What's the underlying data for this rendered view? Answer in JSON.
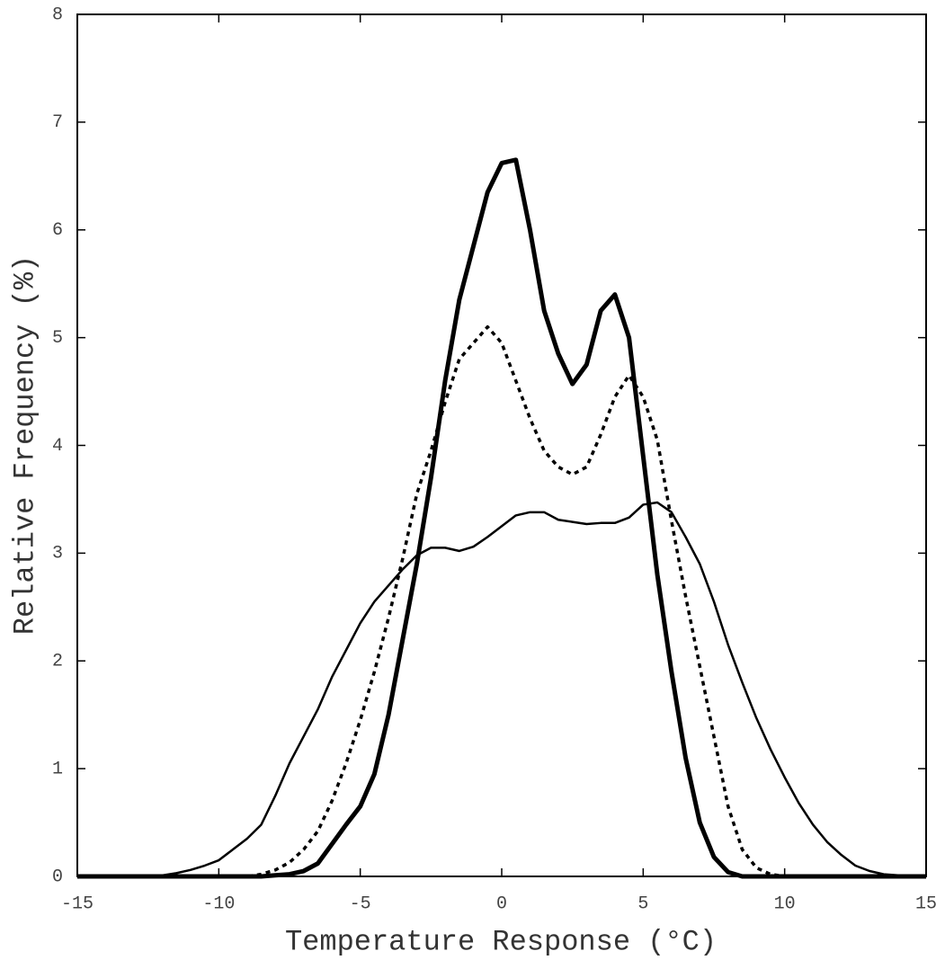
{
  "chart_data": {
    "type": "line",
    "xlabel": "Temperature Response (°C)",
    "ylabel": "Relative Frequency (%)",
    "x": [
      -15,
      -14.5,
      -14,
      -13.5,
      -13,
      -12.5,
      -12,
      -11.5,
      -11,
      -10.5,
      -10,
      -9.5,
      -9,
      -8.5,
      -8,
      -7.5,
      -7,
      -6.5,
      -6,
      -5.5,
      -5,
      -4.5,
      -4,
      -3.5,
      -3,
      -2.5,
      -2,
      -1.5,
      -1,
      -0.5,
      0,
      0.5,
      1,
      1.5,
      2,
      2.5,
      3,
      3.5,
      4,
      4.5,
      5,
      5.5,
      6,
      6.5,
      7,
      7.5,
      8,
      8.5,
      9,
      9.5,
      10,
      10.5,
      11,
      11.5,
      12,
      12.5,
      13,
      13.5,
      14,
      14.5,
      15
    ],
    "series": [
      {
        "color": "#000000",
        "line_width": 5,
        "style": "solid",
        "values": [
          0,
          0,
          0,
          0,
          0,
          0,
          0,
          0,
          0,
          0,
          0,
          0,
          0,
          0,
          0.01,
          0.02,
          0.05,
          0.12,
          0.3,
          0.48,
          0.65,
          0.95,
          1.5,
          2.2,
          2.9,
          3.7,
          4.6,
          5.35,
          5.85,
          6.35,
          6.62,
          6.65,
          6.0,
          5.25,
          4.85,
          4.57,
          4.75,
          5.25,
          5.4,
          5.0,
          3.9,
          2.8,
          1.9,
          1.1,
          0.5,
          0.18,
          0.04,
          0,
          0,
          0,
          0,
          0,
          0,
          0,
          0,
          0,
          0,
          0,
          0,
          0,
          0
        ]
      },
      {
        "color": "#000000",
        "line_width": 3.5,
        "style": "dotted",
        "values": [
          0,
          0,
          0,
          0,
          0,
          0,
          0,
          0,
          0,
          0,
          0,
          0,
          0,
          0.02,
          0.06,
          0.13,
          0.25,
          0.42,
          0.7,
          1.05,
          1.45,
          1.9,
          2.4,
          2.95,
          3.55,
          3.95,
          4.4,
          4.8,
          4.95,
          5.1,
          4.95,
          4.6,
          4.25,
          3.95,
          3.8,
          3.73,
          3.8,
          4.1,
          4.45,
          4.65,
          4.45,
          4.05,
          3.3,
          2.6,
          1.95,
          1.3,
          0.65,
          0.25,
          0.08,
          0.02,
          0,
          0,
          0,
          0,
          0,
          0,
          0,
          0,
          0,
          0,
          0
        ]
      },
      {
        "color": "#000000",
        "line_width": 2.5,
        "style": "solid",
        "values": [
          0,
          0,
          0,
          0,
          0,
          0,
          0.01,
          0.03,
          0.06,
          0.1,
          0.15,
          0.25,
          0.35,
          0.48,
          0.75,
          1.05,
          1.3,
          1.55,
          1.85,
          2.1,
          2.35,
          2.55,
          2.7,
          2.85,
          2.98,
          3.05,
          3.05,
          3.02,
          3.06,
          3.15,
          3.25,
          3.35,
          3.38,
          3.38,
          3.31,
          3.29,
          3.27,
          3.28,
          3.28,
          3.33,
          3.45,
          3.47,
          3.38,
          3.15,
          2.9,
          2.55,
          2.15,
          1.8,
          1.47,
          1.18,
          0.92,
          0.68,
          0.48,
          0.32,
          0.2,
          0.1,
          0.05,
          0.02,
          0.01,
          0,
          0
        ]
      }
    ],
    "xlim": [
      -15,
      15
    ],
    "xticks": [
      -15,
      -10,
      -5,
      0,
      5,
      10,
      15
    ],
    "ylim": [
      0,
      8
    ],
    "yticks": [
      0,
      1,
      2,
      3,
      4,
      5,
      6,
      7,
      8
    ],
    "grid": false
  }
}
